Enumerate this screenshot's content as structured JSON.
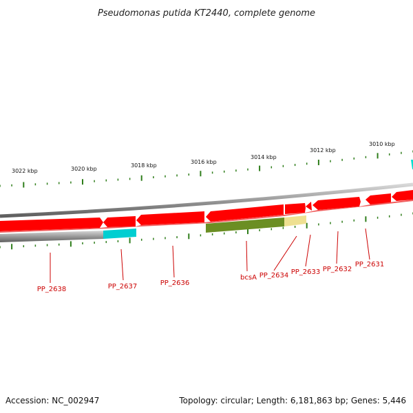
{
  "title": "Pseudomonas putida KT2440, complete genome",
  "footer": {
    "accession": "Accession: NC_002947",
    "topology": "Topology: circular; Length: 6,181,863 bp; Genes: 5,446"
  },
  "colors": {
    "background": "#ffffff",
    "backbone": "#808080",
    "forward_cds": "#ff0000",
    "tick": "#2e7d1a",
    "gene_label": "#cc0000",
    "bcsA_feature": "#6b8e23",
    "bcsA_extension": "#f0e68c",
    "pp2638_feature": "#c0c0c0",
    "pp2637_feature": "#00ced1"
  },
  "kbp_labels": [
    "3022 kbp",
    "3020 kbp",
    "3018 kbp",
    "3016 kbp",
    "3014 kbp",
    "3012 kbp",
    "3010 kbp"
  ],
  "genes": [
    {
      "name": "PP_2638",
      "strand": "reverse",
      "color": "gray"
    },
    {
      "name": "PP_2637",
      "strand": "reverse",
      "color": "cyan"
    },
    {
      "name": "PP_2636",
      "strand": "forward",
      "color": "red"
    },
    {
      "name": "bcsA",
      "strand": "reverse",
      "color": "olive"
    },
    {
      "name": "PP_2634",
      "strand": "forward",
      "color": "red"
    },
    {
      "name": "PP_2633",
      "strand": "forward",
      "color": "red"
    },
    {
      "name": "PP_2632",
      "strand": "forward",
      "color": "red"
    },
    {
      "name": "PP_2631",
      "strand": "forward",
      "color": "red"
    }
  ]
}
